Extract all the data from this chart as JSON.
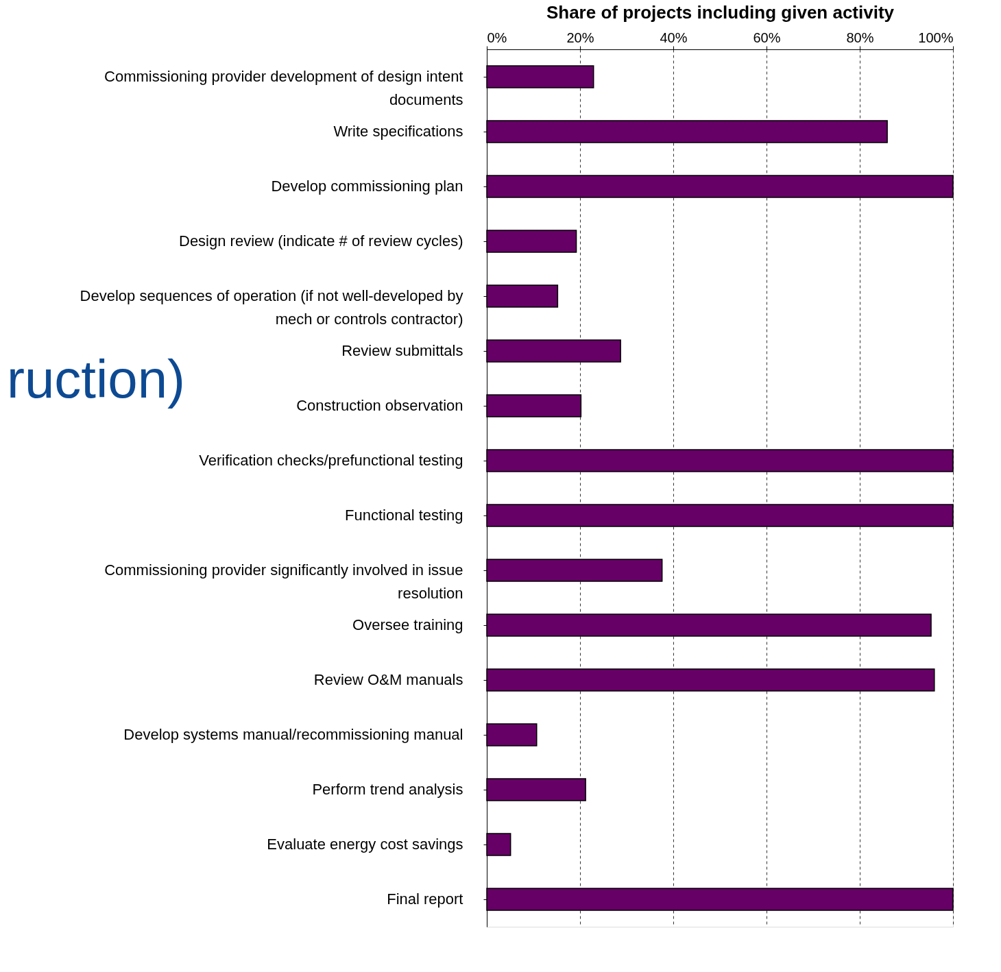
{
  "chart_data": {
    "type": "bar",
    "orientation": "horizontal",
    "xlabel": "Share of projects including given activity",
    "categories": [
      "Commissioning provider development of design intent documents",
      "Write specifications",
      "Develop commissioning plan",
      "Design review (indicate # of review cycles)",
      "Develop sequences of operation (if not well-developed by mech or controls contractor)",
      "Review submittals",
      "Construction observation",
      "Verification checks/prefunctional testing",
      "Functional testing",
      "Commissioning provider significantly involved in issue resolution",
      "Oversee training",
      "Review O&M manuals",
      "Develop systems manual/recommissioning manual",
      "Perform trend analysis",
      "Evaluate energy cost savings",
      "Final report"
    ],
    "values": [
      0.229,
      0.859,
      1.0,
      0.192,
      0.152,
      0.287,
      0.202,
      1.0,
      1.0,
      0.376,
      0.953,
      0.96,
      0.107,
      0.212,
      0.051,
      1.0
    ],
    "color": "#660066",
    "xlim": [
      0,
      1
    ],
    "xticks": [
      {
        "value": 0,
        "label": "0%"
      },
      {
        "value": 0.2,
        "label": "20%"
      },
      {
        "value": 0.4,
        "label": "40%"
      },
      {
        "value": 0.6,
        "label": "60%"
      },
      {
        "value": 0.8,
        "label": "80%"
      },
      {
        "value": 1.0,
        "label": "100%"
      }
    ],
    "grid": "x",
    "line_style": "dashed",
    "annotations": [
      "ruction)"
    ]
  }
}
